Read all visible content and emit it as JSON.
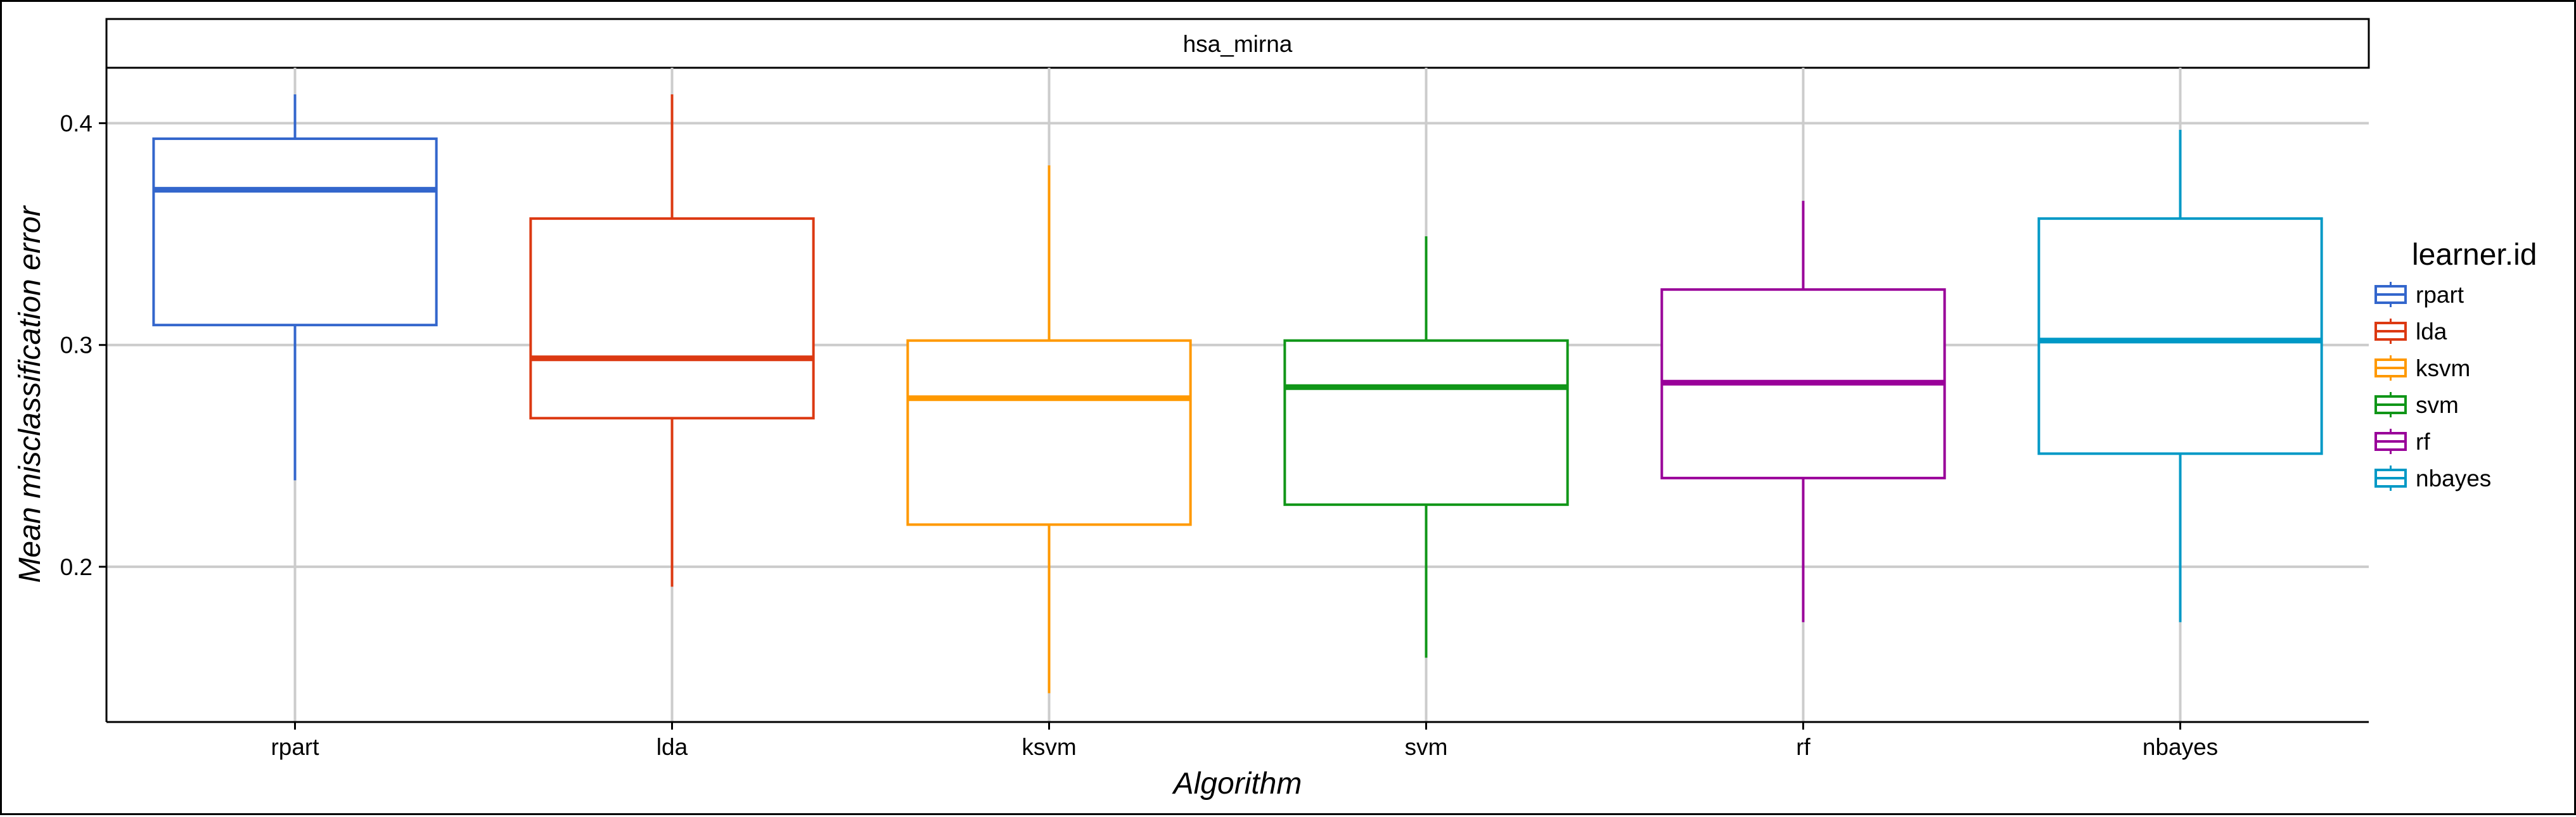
{
  "chart_data": {
    "type": "boxplot",
    "facet": "hsa_mirna",
    "xlabel": "Algorithm",
    "ylabel": "Mean misclassification error",
    "yticks": [
      0.2,
      0.3,
      0.4
    ],
    "ylim": [
      0.13,
      0.425
    ],
    "grid": true,
    "legend": {
      "title": "learner.id",
      "position": "right"
    },
    "categories": [
      "rpart",
      "lda",
      "ksvm",
      "svm",
      "rf",
      "nbayes"
    ],
    "series": [
      {
        "name": "rpart",
        "color": "#3366cc",
        "min": 0.239,
        "q1": 0.309,
        "median": 0.37,
        "q3": 0.393,
        "max": 0.413
      },
      {
        "name": "lda",
        "color": "#dc3912",
        "min": 0.191,
        "q1": 0.267,
        "median": 0.294,
        "q3": 0.357,
        "max": 0.413
      },
      {
        "name": "ksvm",
        "color": "#ff9900",
        "min": 0.143,
        "q1": 0.219,
        "median": 0.276,
        "q3": 0.302,
        "max": 0.381
      },
      {
        "name": "svm",
        "color": "#109618",
        "min": 0.159,
        "q1": 0.228,
        "median": 0.281,
        "q3": 0.302,
        "max": 0.349
      },
      {
        "name": "rf",
        "color": "#990099",
        "min": 0.175,
        "q1": 0.24,
        "median": 0.283,
        "q3": 0.325,
        "max": 0.365
      },
      {
        "name": "nbayes",
        "color": "#0099c6",
        "min": 0.175,
        "q1": 0.251,
        "median": 0.302,
        "q3": 0.357,
        "max": 0.397
      }
    ]
  }
}
